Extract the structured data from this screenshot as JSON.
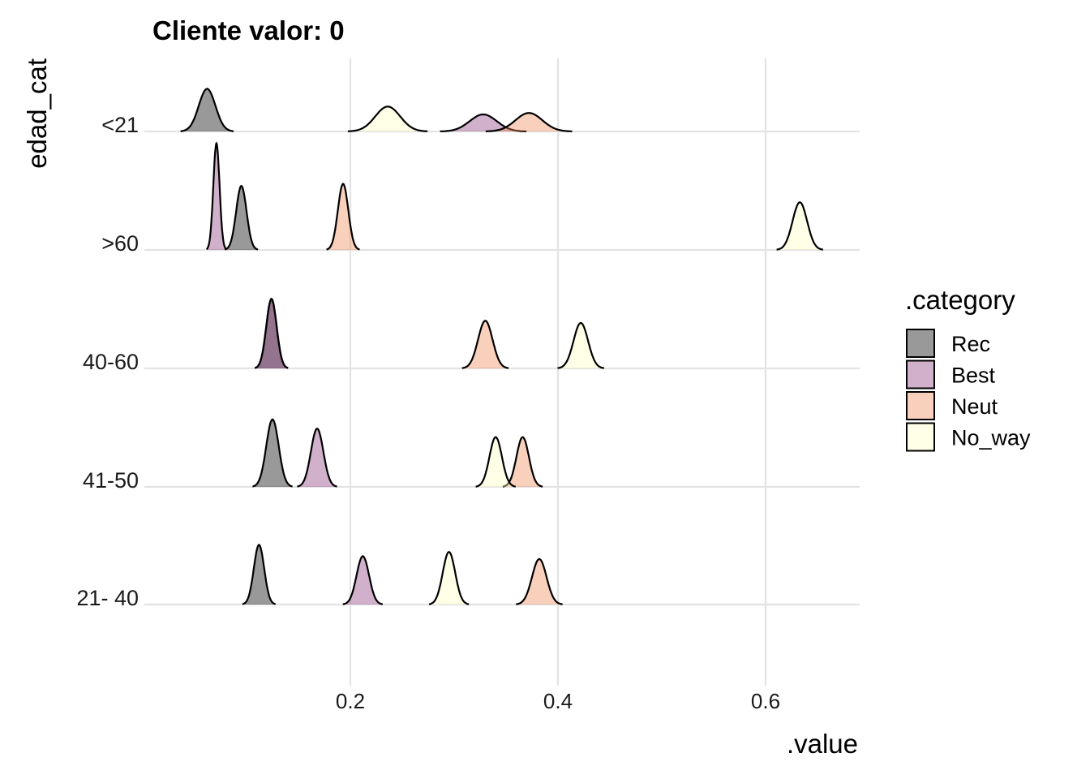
{
  "chart_data": {
    "type": "area",
    "subtype": "density-ridgeline",
    "title": "Cliente valor: 0",
    "xlabel": ".value",
    "ylabel": "edad_cat",
    "xlim": [
      0.0,
      0.7
    ],
    "x_ticks": [
      0.2,
      0.4,
      0.6
    ],
    "x_tick_labels": [
      "0.2",
      "0.4",
      "0.6"
    ],
    "categories": [
      "21- 40",
      "41-50",
      "40-60",
      ">60",
      "<21"
    ],
    "grid": true,
    "legend": {
      "title": ".category",
      "position": "right"
    },
    "series": [
      {
        "name": "Rec",
        "color": "#000000",
        "peaks": {
          "21- 40": 0.112,
          "41-50": 0.125,
          "40-60": 0.124,
          ">60": 0.095,
          "<21": 0.062
        },
        "sd": {
          "21- 40": 0.005,
          "41-50": 0.006,
          "40-60": 0.005,
          ">60": 0.005,
          "<21": 0.008
        },
        "height": {
          "21- 40": 0.84,
          "41-50": 0.95,
          "40-60": 0.97,
          ">60": 0.9,
          "<21": 0.6
        }
      },
      {
        "name": "Best",
        "color": "#8c3a7f",
        "peaks": {
          "21- 40": 0.212,
          "41-50": 0.168,
          "40-60": 0.124,
          ">60": 0.071,
          "<21": 0.328
        },
        "sd": {
          "21- 40": 0.006,
          "41-50": 0.006,
          "40-60": 0.005,
          ">60": 0.003,
          "<21": 0.013
        },
        "height": {
          "21- 40": 0.68,
          "41-50": 0.82,
          "40-60": 0.98,
          ">60": 1.5,
          "<21": 0.24
        }
      },
      {
        "name": "Neut",
        "color": "#f08a55",
        "peaks": {
          "21- 40": 0.382,
          "41-50": 0.366,
          "40-60": 0.33,
          ">60": 0.193,
          "<21": 0.372
        },
        "sd": {
          "21- 40": 0.007,
          "41-50": 0.006,
          "40-60": 0.007,
          ">60": 0.005,
          "<21": 0.013
        },
        "height": {
          "21- 40": 0.64,
          "41-50": 0.7,
          "40-60": 0.67,
          ">60": 0.93,
          "<21": 0.26
        }
      },
      {
        "name": "No_way",
        "color": "#ffffc4",
        "peaks": {
          "21- 40": 0.295,
          "41-50": 0.34,
          "40-60": 0.422,
          ">60": 0.633,
          "<21": 0.236
        },
        "sd": {
          "21- 40": 0.006,
          "41-50": 0.006,
          "40-60": 0.007,
          ">60": 0.007,
          "<21": 0.012
        },
        "height": {
          "21- 40": 0.74,
          "41-50": 0.7,
          "40-60": 0.64,
          ">60": 0.67,
          "<21": 0.35
        }
      }
    ]
  }
}
